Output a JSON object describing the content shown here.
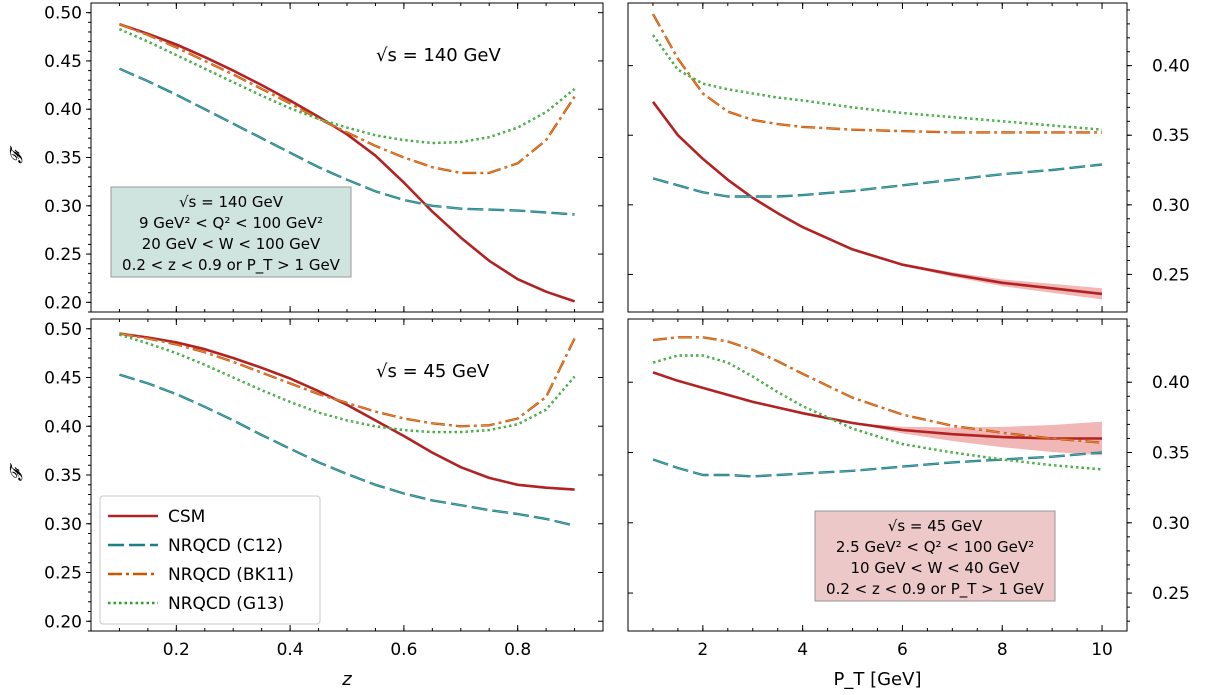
{
  "chart_data": {
    "type": "line",
    "legend": {
      "placement": "lower-left of bottom-left panel",
      "entries": [
        {
          "label": "CSM",
          "color": "#b22222",
          "style": "solid"
        },
        {
          "label": "NRQCD (C12)",
          "color": "#1a7f86",
          "style": "dashed"
        },
        {
          "label": "NRQCD (BK11)",
          "color": "#cc5500",
          "style": "dashdot"
        },
        {
          "label": "NRQCD (G13)",
          "color": "#2ca02c",
          "style": "dotted"
        }
      ]
    },
    "panels": [
      {
        "id": "top-left",
        "ylabel": "𝓕",
        "xlabel": "",
        "xlim": [
          0.05,
          0.95
        ],
        "ylim": [
          0.19,
          0.51
        ],
        "xticks": [],
        "yticks": [
          "0.20",
          "0.25",
          "0.30",
          "0.35",
          "0.40",
          "0.45",
          "0.50"
        ],
        "annotation": "√s = 140 GeV",
        "infobox": {
          "lines": [
            "√s = 140 GeV",
            "9 GeV² < Q² < 100 GeV²",
            "20 GeV < W < 100 GeV",
            "0.2 < z < 0.9 or P_T > 1 GeV"
          ],
          "color": "#cfe3df"
        },
        "series": [
          {
            "name": "CSM",
            "x": [
              0.1,
              0.15,
              0.2,
              0.25,
              0.3,
              0.35,
              0.4,
              0.45,
              0.5,
              0.55,
              0.6,
              0.65,
              0.7,
              0.75,
              0.8,
              0.85,
              0.9
            ],
            "y": [
              0.488,
              0.478,
              0.467,
              0.454,
              0.44,
              0.425,
              0.409,
              0.392,
              0.374,
              0.352,
              0.324,
              0.294,
              0.267,
              0.243,
              0.224,
              0.211,
              0.201
            ]
          },
          {
            "name": "NRQCD (C12)",
            "x": [
              0.1,
              0.15,
              0.2,
              0.25,
              0.3,
              0.35,
              0.4,
              0.45,
              0.5,
              0.55,
              0.6,
              0.65,
              0.7,
              0.75,
              0.8,
              0.85,
              0.9
            ],
            "y": [
              0.442,
              0.429,
              0.415,
              0.4,
              0.385,
              0.37,
              0.355,
              0.34,
              0.327,
              0.315,
              0.306,
              0.3,
              0.297,
              0.296,
              0.295,
              0.293,
              0.291
            ]
          },
          {
            "name": "NRQCD (BK11)",
            "x": [
              0.1,
              0.15,
              0.2,
              0.25,
              0.3,
              0.35,
              0.4,
              0.45,
              0.5,
              0.55,
              0.6,
              0.65,
              0.7,
              0.75,
              0.8,
              0.85,
              0.9
            ],
            "y": [
              0.488,
              0.477,
              0.464,
              0.45,
              0.436,
              0.421,
              0.406,
              0.39,
              0.376,
              0.362,
              0.35,
              0.34,
              0.334,
              0.334,
              0.344,
              0.368,
              0.413
            ]
          },
          {
            "name": "NRQCD (G13)",
            "x": [
              0.1,
              0.15,
              0.2,
              0.25,
              0.3,
              0.35,
              0.4,
              0.45,
              0.5,
              0.55,
              0.6,
              0.65,
              0.7,
              0.75,
              0.8,
              0.85,
              0.9
            ],
            "y": [
              0.483,
              0.47,
              0.456,
              0.442,
              0.428,
              0.414,
              0.401,
              0.39,
              0.381,
              0.373,
              0.368,
              0.365,
              0.366,
              0.371,
              0.381,
              0.397,
              0.421
            ]
          }
        ]
      },
      {
        "id": "top-right",
        "ylabel": "",
        "xlabel": "",
        "xlim": [
          0.5,
          10.5
        ],
        "ylim": [
          0.223,
          0.445
        ],
        "xticks": [],
        "yticks": [
          "0.25",
          "0.30",
          "0.35",
          "0.40"
        ],
        "annotation": "",
        "infobox": null,
        "series": [
          {
            "name": "CSM",
            "x": [
              1,
              1.5,
              2,
              2.5,
              3,
              3.5,
              4,
              5,
              6,
              7,
              8,
              9,
              10
            ],
            "y": [
              0.374,
              0.35,
              0.333,
              0.318,
              0.305,
              0.294,
              0.284,
              0.268,
              0.257,
              0.25,
              0.244,
              0.24,
              0.236
            ]
          },
          {
            "name": "NRQCD (C12)",
            "x": [
              1,
              1.5,
              2,
              2.5,
              3,
              3.5,
              4,
              5,
              6,
              7,
              8,
              9,
              10
            ],
            "y": [
              0.319,
              0.314,
              0.309,
              0.306,
              0.306,
              0.306,
              0.307,
              0.31,
              0.314,
              0.318,
              0.322,
              0.325,
              0.329
            ]
          },
          {
            "name": "NRQCD (BK11)",
            "x": [
              1,
              1.5,
              2,
              2.5,
              3,
              3.5,
              4,
              5,
              6,
              7,
              8,
              9,
              10
            ],
            "y": [
              0.437,
              0.405,
              0.38,
              0.367,
              0.361,
              0.358,
              0.356,
              0.354,
              0.353,
              0.352,
              0.352,
              0.352,
              0.352
            ]
          },
          {
            "name": "NRQCD (G13)",
            "x": [
              1,
              1.5,
              2,
              2.5,
              3,
              3.5,
              4,
              5,
              6,
              7,
              8,
              9,
              10
            ],
            "y": [
              0.422,
              0.397,
              0.387,
              0.383,
              0.38,
              0.377,
              0.375,
              0.37,
              0.366,
              0.363,
              0.36,
              0.357,
              0.354
            ]
          }
        ]
      },
      {
        "id": "bottom-left",
        "ylabel": "𝓕",
        "xlabel": "z",
        "xlim": [
          0.05,
          0.95
        ],
        "ylim": [
          0.19,
          0.51
        ],
        "xticks": [
          "0.2",
          "0.4",
          "0.6",
          "0.8"
        ],
        "yticks": [
          "0.20",
          "0.25",
          "0.30",
          "0.35",
          "0.40",
          "0.45",
          "0.50"
        ],
        "annotation": "√s = 45 GeV",
        "infobox": null,
        "series": [
          {
            "name": "CSM",
            "x": [
              0.1,
              0.15,
              0.2,
              0.25,
              0.3,
              0.35,
              0.4,
              0.45,
              0.5,
              0.55,
              0.6,
              0.65,
              0.7,
              0.75,
              0.8,
              0.85,
              0.9
            ],
            "y": [
              0.495,
              0.491,
              0.486,
              0.479,
              0.47,
              0.46,
              0.449,
              0.436,
              0.422,
              0.406,
              0.39,
              0.373,
              0.358,
              0.347,
              0.34,
              0.337,
              0.335
            ]
          },
          {
            "name": "NRQCD (C12)",
            "x": [
              0.1,
              0.15,
              0.2,
              0.25,
              0.3,
              0.35,
              0.4,
              0.45,
              0.5,
              0.55,
              0.6,
              0.65,
              0.7,
              0.75,
              0.8,
              0.85,
              0.9
            ],
            "y": [
              0.453,
              0.444,
              0.433,
              0.42,
              0.406,
              0.391,
              0.377,
              0.363,
              0.351,
              0.34,
              0.331,
              0.324,
              0.319,
              0.314,
              0.31,
              0.305,
              0.298
            ]
          },
          {
            "name": "NRQCD (BK11)",
            "x": [
              0.1,
              0.15,
              0.2,
              0.25,
              0.3,
              0.35,
              0.4,
              0.45,
              0.5,
              0.55,
              0.6,
              0.65,
              0.7,
              0.75,
              0.8,
              0.85,
              0.9
            ],
            "y": [
              0.495,
              0.49,
              0.484,
              0.476,
              0.466,
              0.455,
              0.444,
              0.433,
              0.424,
              0.415,
              0.408,
              0.403,
              0.4,
              0.401,
              0.408,
              0.43,
              0.49
            ]
          },
          {
            "name": "NRQCD (G13)",
            "x": [
              0.1,
              0.15,
              0.2,
              0.25,
              0.3,
              0.35,
              0.4,
              0.45,
              0.5,
              0.55,
              0.6,
              0.65,
              0.7,
              0.75,
              0.8,
              0.85,
              0.9
            ],
            "y": [
              0.494,
              0.485,
              0.475,
              0.463,
              0.45,
              0.437,
              0.425,
              0.414,
              0.406,
              0.4,
              0.396,
              0.394,
              0.394,
              0.396,
              0.402,
              0.417,
              0.451
            ]
          }
        ]
      },
      {
        "id": "bottom-right",
        "ylabel": "",
        "xlabel": "P_T [GeV]",
        "xlim": [
          0.5,
          10.5
        ],
        "ylim": [
          0.223,
          0.445
        ],
        "xticks": [
          "2",
          "4",
          "6",
          "8",
          "10"
        ],
        "yticks": [
          "0.25",
          "0.30",
          "0.35",
          "0.40"
        ],
        "annotation": "",
        "infobox": {
          "lines": [
            "√s = 45 GeV",
            "2.5 GeV² < Q² < 100 GeV²",
            "10 GeV < W < 40 GeV",
            "0.2 < z < 0.9 or P_T > 1 GeV"
          ],
          "color": "#ecc8c8"
        },
        "series": [
          {
            "name": "CSM",
            "x": [
              1,
              1.5,
              2,
              2.5,
              3,
              3.5,
              4,
              5,
              6,
              7,
              8,
              9,
              10
            ],
            "y": [
              0.407,
              0.401,
              0.396,
              0.391,
              0.386,
              0.382,
              0.378,
              0.371,
              0.366,
              0.363,
              0.361,
              0.36,
              0.36
            ]
          },
          {
            "name": "NRQCD (C12)",
            "x": [
              1,
              1.5,
              2,
              2.5,
              3,
              3.5,
              4,
              5,
              6,
              7,
              8,
              9,
              10
            ],
            "y": [
              0.345,
              0.339,
              0.334,
              0.334,
              0.333,
              0.334,
              0.335,
              0.337,
              0.34,
              0.343,
              0.345,
              0.347,
              0.35
            ]
          },
          {
            "name": "NRQCD (BK11)",
            "x": [
              1,
              1.5,
              2,
              2.5,
              3,
              3.5,
              4,
              5,
              6,
              7,
              8,
              9,
              10
            ],
            "y": [
              0.43,
              0.432,
              0.432,
              0.429,
              0.423,
              0.415,
              0.406,
              0.389,
              0.377,
              0.369,
              0.364,
              0.36,
              0.357
            ]
          },
          {
            "name": "NRQCD (G13)",
            "x": [
              1,
              1.5,
              2,
              2.5,
              3,
              3.5,
              4,
              5,
              6,
              7,
              8,
              9,
              10
            ],
            "y": [
              0.414,
              0.419,
              0.419,
              0.414,
              0.404,
              0.393,
              0.383,
              0.367,
              0.356,
              0.35,
              0.345,
              0.341,
              0.338
            ]
          }
        ]
      }
    ]
  }
}
